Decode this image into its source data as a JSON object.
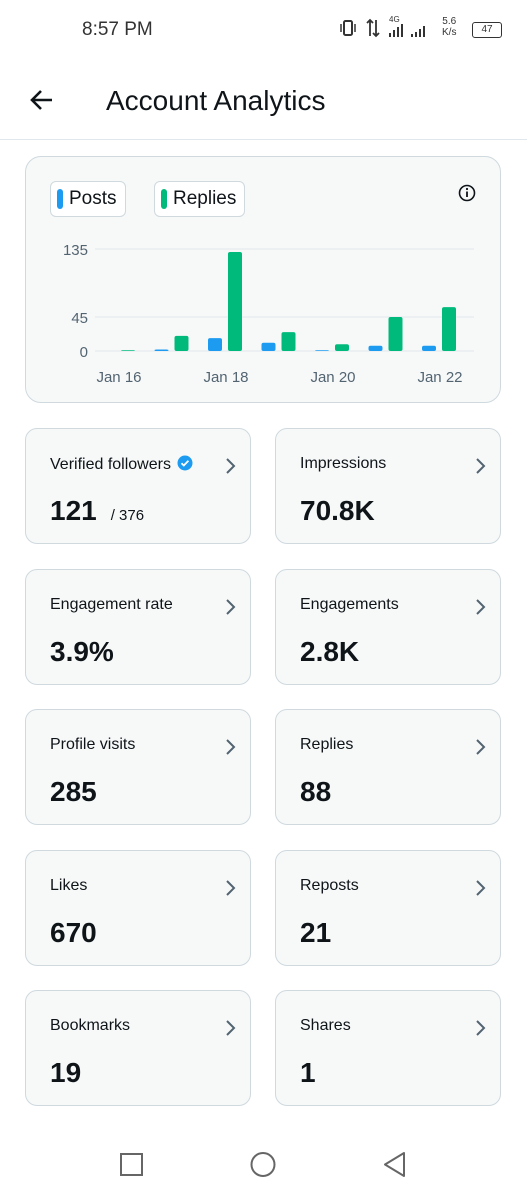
{
  "status_bar": {
    "time": "8:57 PM",
    "network": "4G",
    "speed": "5.6",
    "speed_unit": "K/s",
    "battery": "47"
  },
  "header": {
    "title": "Account Analytics"
  },
  "chart_data": {
    "type": "bar",
    "categories": [
      "Jan 16",
      null,
      "Jan 18",
      null,
      "Jan 20",
      null,
      "Jan 22"
    ],
    "series": [
      {
        "name": "Posts",
        "color": "#1d9bf0",
        "values": [
          0,
          2,
          17,
          11,
          1,
          7,
          7
        ]
      },
      {
        "name": "Replies",
        "color": "#00ba7c",
        "values": [
          1,
          20,
          131,
          25,
          9,
          45,
          58
        ]
      }
    ],
    "ylim": [
      0,
      135
    ],
    "yticks": [
      0,
      45,
      135
    ],
    "grid": true
  },
  "cards": [
    {
      "label": "Verified followers",
      "value": "121",
      "total": "/ 376"
    },
    {
      "label": "Impressions",
      "value": "70.8K"
    },
    {
      "label": "Engagement rate",
      "value": "3.9%"
    },
    {
      "label": "Engagements",
      "value": "2.8K"
    },
    {
      "label": "Profile visits",
      "value": "285"
    },
    {
      "label": "Replies",
      "value": "88"
    },
    {
      "label": "Likes",
      "value": "670"
    },
    {
      "label": "Reposts",
      "value": "21"
    },
    {
      "label": "Bookmarks",
      "value": "19"
    },
    {
      "label": "Shares",
      "value": "1"
    }
  ]
}
